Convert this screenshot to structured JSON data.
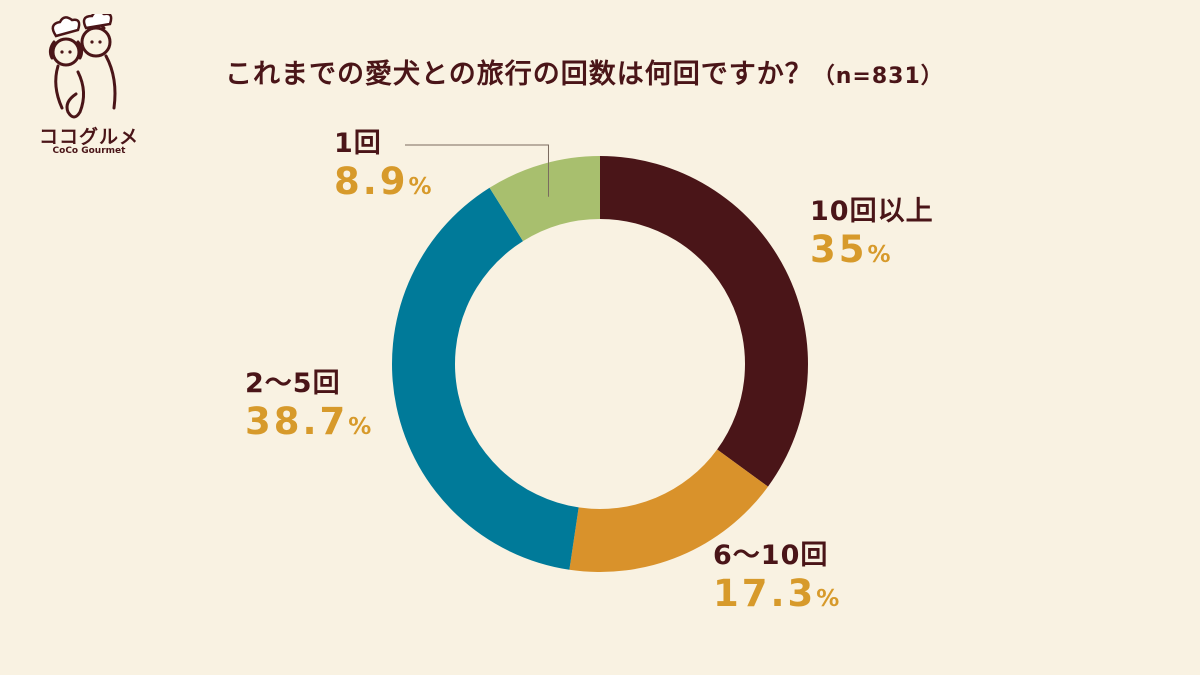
{
  "logo": {
    "name": "ココグルメ",
    "subname": "CoCo Gourmet"
  },
  "title": {
    "main": "これまでの愛犬との旅行の回数は何回ですか？",
    "sample": "（n=831）"
  },
  "chart_data": {
    "type": "pie",
    "style": "donut",
    "title": "これまでの愛犬との旅行の回数は何回ですか？",
    "sample_size": "n=831",
    "unit": "%",
    "categories": [
      "10回以上",
      "6〜10回",
      "2〜5回",
      "1回"
    ],
    "values": [
      35,
      17.3,
      38.7,
      8.9
    ],
    "value_labels": [
      "35",
      "17.3",
      "38.7",
      "8.9"
    ],
    "colors": [
      "#4a1518",
      "#d9922b",
      "#007a99",
      "#a8bf6e"
    ],
    "start": "12 o'clock, clockwise",
    "legend": "none (direct labels)"
  }
}
